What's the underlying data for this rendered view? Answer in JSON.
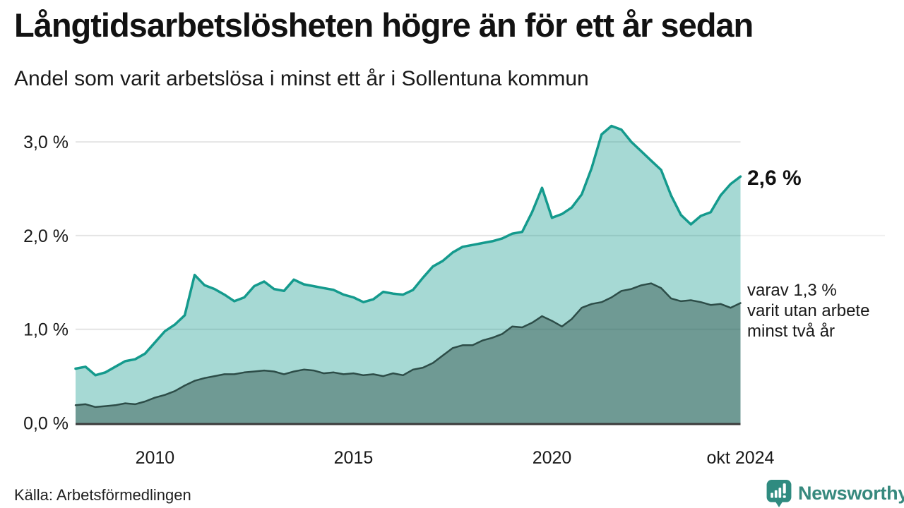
{
  "header": {
    "title": "Långtidsarbetslösheten högre än för ett år sedan",
    "subtitle": "Andel som varit arbetslösa i minst ett år i Sollentuna kommun"
  },
  "annotations": {
    "latest_value_label": "2,6 %",
    "secondary_label": "varav 1,3 %\nvarit utan arbete\nminst två år"
  },
  "footer": {
    "source": "Källa: Arbetsförmedlingen",
    "brand": "Newsworthy"
  },
  "colors": {
    "line_one_year": "#149a8d",
    "fill_one_year": "rgba(20,154,141,0.38)",
    "line_two_year": "#2d4d48",
    "fill_two_year": "rgba(45,77,72,0.45)",
    "gridline": "#e4e4e4",
    "gridline_faint": "#efefef",
    "axis_line": "#3b3b3b",
    "text": "#1a1a1a",
    "brand_teal": "#2f8b80"
  },
  "chart_data": {
    "type": "area",
    "title": "Långtidsarbetslösheten högre än för ett år sedan",
    "subtitle": "Andel som varit arbetslösa i minst ett år i Sollentuna kommun",
    "x_unit": "decimal_year",
    "x": [
      2008.0,
      2008.25,
      2008.5,
      2008.75,
      2009.0,
      2009.25,
      2009.5,
      2009.75,
      2010.0,
      2010.25,
      2010.5,
      2010.75,
      2011.0,
      2011.25,
      2011.5,
      2011.75,
      2012.0,
      2012.25,
      2012.5,
      2012.75,
      2013.0,
      2013.25,
      2013.5,
      2013.75,
      2014.0,
      2014.25,
      2014.5,
      2014.75,
      2015.0,
      2015.25,
      2015.5,
      2015.75,
      2016.0,
      2016.25,
      2016.5,
      2016.75,
      2017.0,
      2017.25,
      2017.5,
      2017.75,
      2018.0,
      2018.25,
      2018.5,
      2018.75,
      2019.0,
      2019.25,
      2019.5,
      2019.75,
      2020.0,
      2020.25,
      2020.5,
      2020.75,
      2021.0,
      2021.25,
      2021.5,
      2021.75,
      2022.0,
      2022.25,
      2022.5,
      2022.75,
      2023.0,
      2023.25,
      2023.5,
      2023.75,
      2024.0,
      2024.25,
      2024.5,
      2024.75
    ],
    "series": [
      {
        "name": "Andel arbetslösa minst ett år",
        "latest_label": "2,6 %",
        "values": [
          0.58,
          0.6,
          0.51,
          0.54,
          0.6,
          0.66,
          0.68,
          0.74,
          0.86,
          0.98,
          1.05,
          1.15,
          1.58,
          1.47,
          1.43,
          1.37,
          1.3,
          1.34,
          1.46,
          1.51,
          1.43,
          1.41,
          1.53,
          1.48,
          1.46,
          1.44,
          1.42,
          1.37,
          1.34,
          1.29,
          1.32,
          1.4,
          1.38,
          1.37,
          1.42,
          1.55,
          1.67,
          1.73,
          1.82,
          1.88,
          1.9,
          1.92,
          1.94,
          1.97,
          2.02,
          2.04,
          2.25,
          2.51,
          2.19,
          2.23,
          2.3,
          2.44,
          2.72,
          3.08,
          3.17,
          3.13,
          3.0,
          2.9,
          2.8,
          2.7,
          2.43,
          2.22,
          2.12,
          2.21,
          2.25,
          2.43,
          2.55,
          2.63
        ]
      },
      {
        "name": "Varav utan arbete minst två år",
        "latest_label": "varav 1,3 % varit utan arbete minst två år",
        "values": [
          0.19,
          0.2,
          0.17,
          0.18,
          0.19,
          0.21,
          0.2,
          0.23,
          0.27,
          0.3,
          0.34,
          0.4,
          0.45,
          0.48,
          0.5,
          0.52,
          0.52,
          0.54,
          0.55,
          0.56,
          0.55,
          0.52,
          0.55,
          0.57,
          0.56,
          0.53,
          0.54,
          0.52,
          0.53,
          0.51,
          0.52,
          0.5,
          0.53,
          0.51,
          0.57,
          0.59,
          0.64,
          0.72,
          0.8,
          0.83,
          0.83,
          0.88,
          0.91,
          0.95,
          1.03,
          1.02,
          1.07,
          1.14,
          1.09,
          1.03,
          1.11,
          1.23,
          1.27,
          1.29,
          1.34,
          1.41,
          1.43,
          1.47,
          1.49,
          1.44,
          1.33,
          1.3,
          1.31,
          1.29,
          1.26,
          1.27,
          1.23,
          1.28
        ]
      }
    ],
    "ylim": [
      0,
      3.3
    ],
    "y_ticks": [
      {
        "value": 0,
        "label": "0,0 %"
      },
      {
        "value": 1,
        "label": "1,0 %"
      },
      {
        "value": 2,
        "label": "2,0 %"
      },
      {
        "value": 3,
        "label": "3,0 %"
      }
    ],
    "x_ticks": [
      {
        "year": 2010,
        "label": "2010"
      },
      {
        "year": 2015,
        "label": "2015"
      },
      {
        "year": 2020,
        "label": "2020"
      },
      {
        "year": 2024.75,
        "label": "okt 2024"
      }
    ],
    "grid": true,
    "legend": "inline-annotations"
  }
}
